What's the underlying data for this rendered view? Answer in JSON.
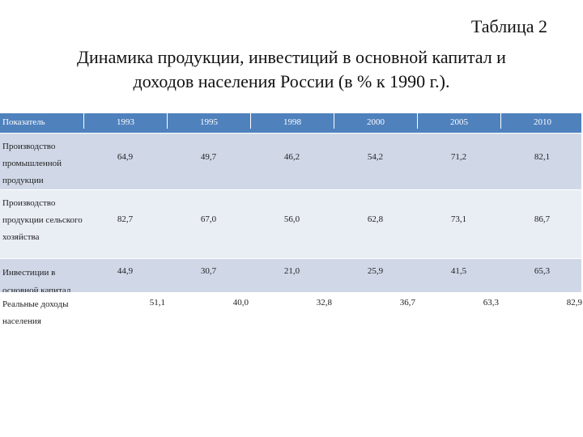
{
  "header": {
    "label": "Таблица 2",
    "title": [
      "Динамика продукции, инвестиций в основной капитал и",
      "доходов населения России  (в % к 1990 г.)."
    ]
  },
  "table": {
    "columns": [
      "Показатель",
      "1993",
      "1995",
      "1998",
      "2000",
      "2005",
      "2010"
    ],
    "rows": [
      [
        "Производство промышленной продукции",
        "64,9",
        "49,7",
        "46,2",
        "54,2",
        "71,2",
        "82,1"
      ],
      [
        "Производство продукции сельского хозяйства",
        "82,7",
        "67,0",
        "56,0",
        "62,8",
        "73,1",
        "86,7"
      ],
      [
        "Инвестиции в основной капитал",
        "44,9",
        "30,7",
        "21,0",
        "25,9",
        "41,5",
        "65,3"
      ],
      [
        "Реальные доходы населения",
        "51,1",
        "40,0",
        "32,8",
        "36,7",
        "63,3",
        "82,9"
      ]
    ]
  }
}
